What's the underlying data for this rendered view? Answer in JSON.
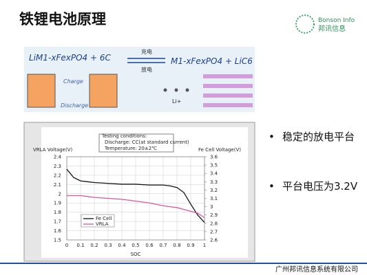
{
  "header": {
    "title": "铁锂电池原理",
    "logo": {
      "name": "Bonson Info",
      "name_cn": "邦讯信息"
    }
  },
  "reaction": {
    "left": "LiM1-xFexPO4  +  6C",
    "charge_cn": "充电",
    "discharge_cn": "放电",
    "right": "M1-xFexPO4  +  LiC6",
    "charge": "Charge",
    "discharge": "Discharge",
    "ion": "Li+"
  },
  "bullets": [
    "稳定的放电平台",
    "平台电压为3.2V"
  ],
  "footer": "广州邦讯信息系统有限公司",
  "chart_data": {
    "type": "line",
    "annotations": [
      "Testing conditions:",
      "Discharge: CC(at standard current)",
      "Temperature: 20±2℃"
    ],
    "x_label": "SOC",
    "y_label": "VRLA Voltage(V)",
    "y2_label": "Fe Cell Voltage(V)",
    "x": [
      0,
      0.05,
      0.1,
      0.2,
      0.3,
      0.4,
      0.5,
      0.6,
      0.7,
      0.75,
      0.8,
      0.85,
      0.9,
      0.95,
      1
    ],
    "series": [
      {
        "name": "Fe Cell",
        "color": "#111111",
        "axis": "y2",
        "values": [
          3.45,
          3.35,
          3.31,
          3.29,
          3.28,
          3.27,
          3.27,
          3.26,
          3.26,
          3.25,
          3.23,
          3.17,
          3.03,
          2.9,
          2.81
        ]
      },
      {
        "name": "VRLA",
        "color": "#d9559e",
        "axis": "y",
        "values": [
          1.98,
          1.98,
          1.98,
          1.96,
          1.95,
          1.94,
          1.92,
          1.9,
          1.87,
          1.86,
          1.85,
          1.83,
          1.81,
          1.79,
          1.74
        ]
      }
    ],
    "xlim": [
      0,
      1
    ],
    "xticks": [
      0,
      0.1,
      0.2,
      0.3,
      0.4,
      0.5,
      0.6,
      0.7,
      0.8,
      0.9,
      1
    ],
    "ylim": [
      1.5,
      2.4
    ],
    "yticks": [
      1.5,
      1.6,
      1.7,
      1.8,
      1.9,
      2,
      2.1,
      2.2,
      2.3,
      2.4
    ],
    "y2lim": [
      2.6,
      3.6
    ],
    "y2ticks": [
      2.6,
      2.7,
      2.8,
      2.9,
      3,
      3.1,
      3.2,
      3.3,
      3.4,
      3.5,
      3.6
    ],
    "grid": true
  }
}
